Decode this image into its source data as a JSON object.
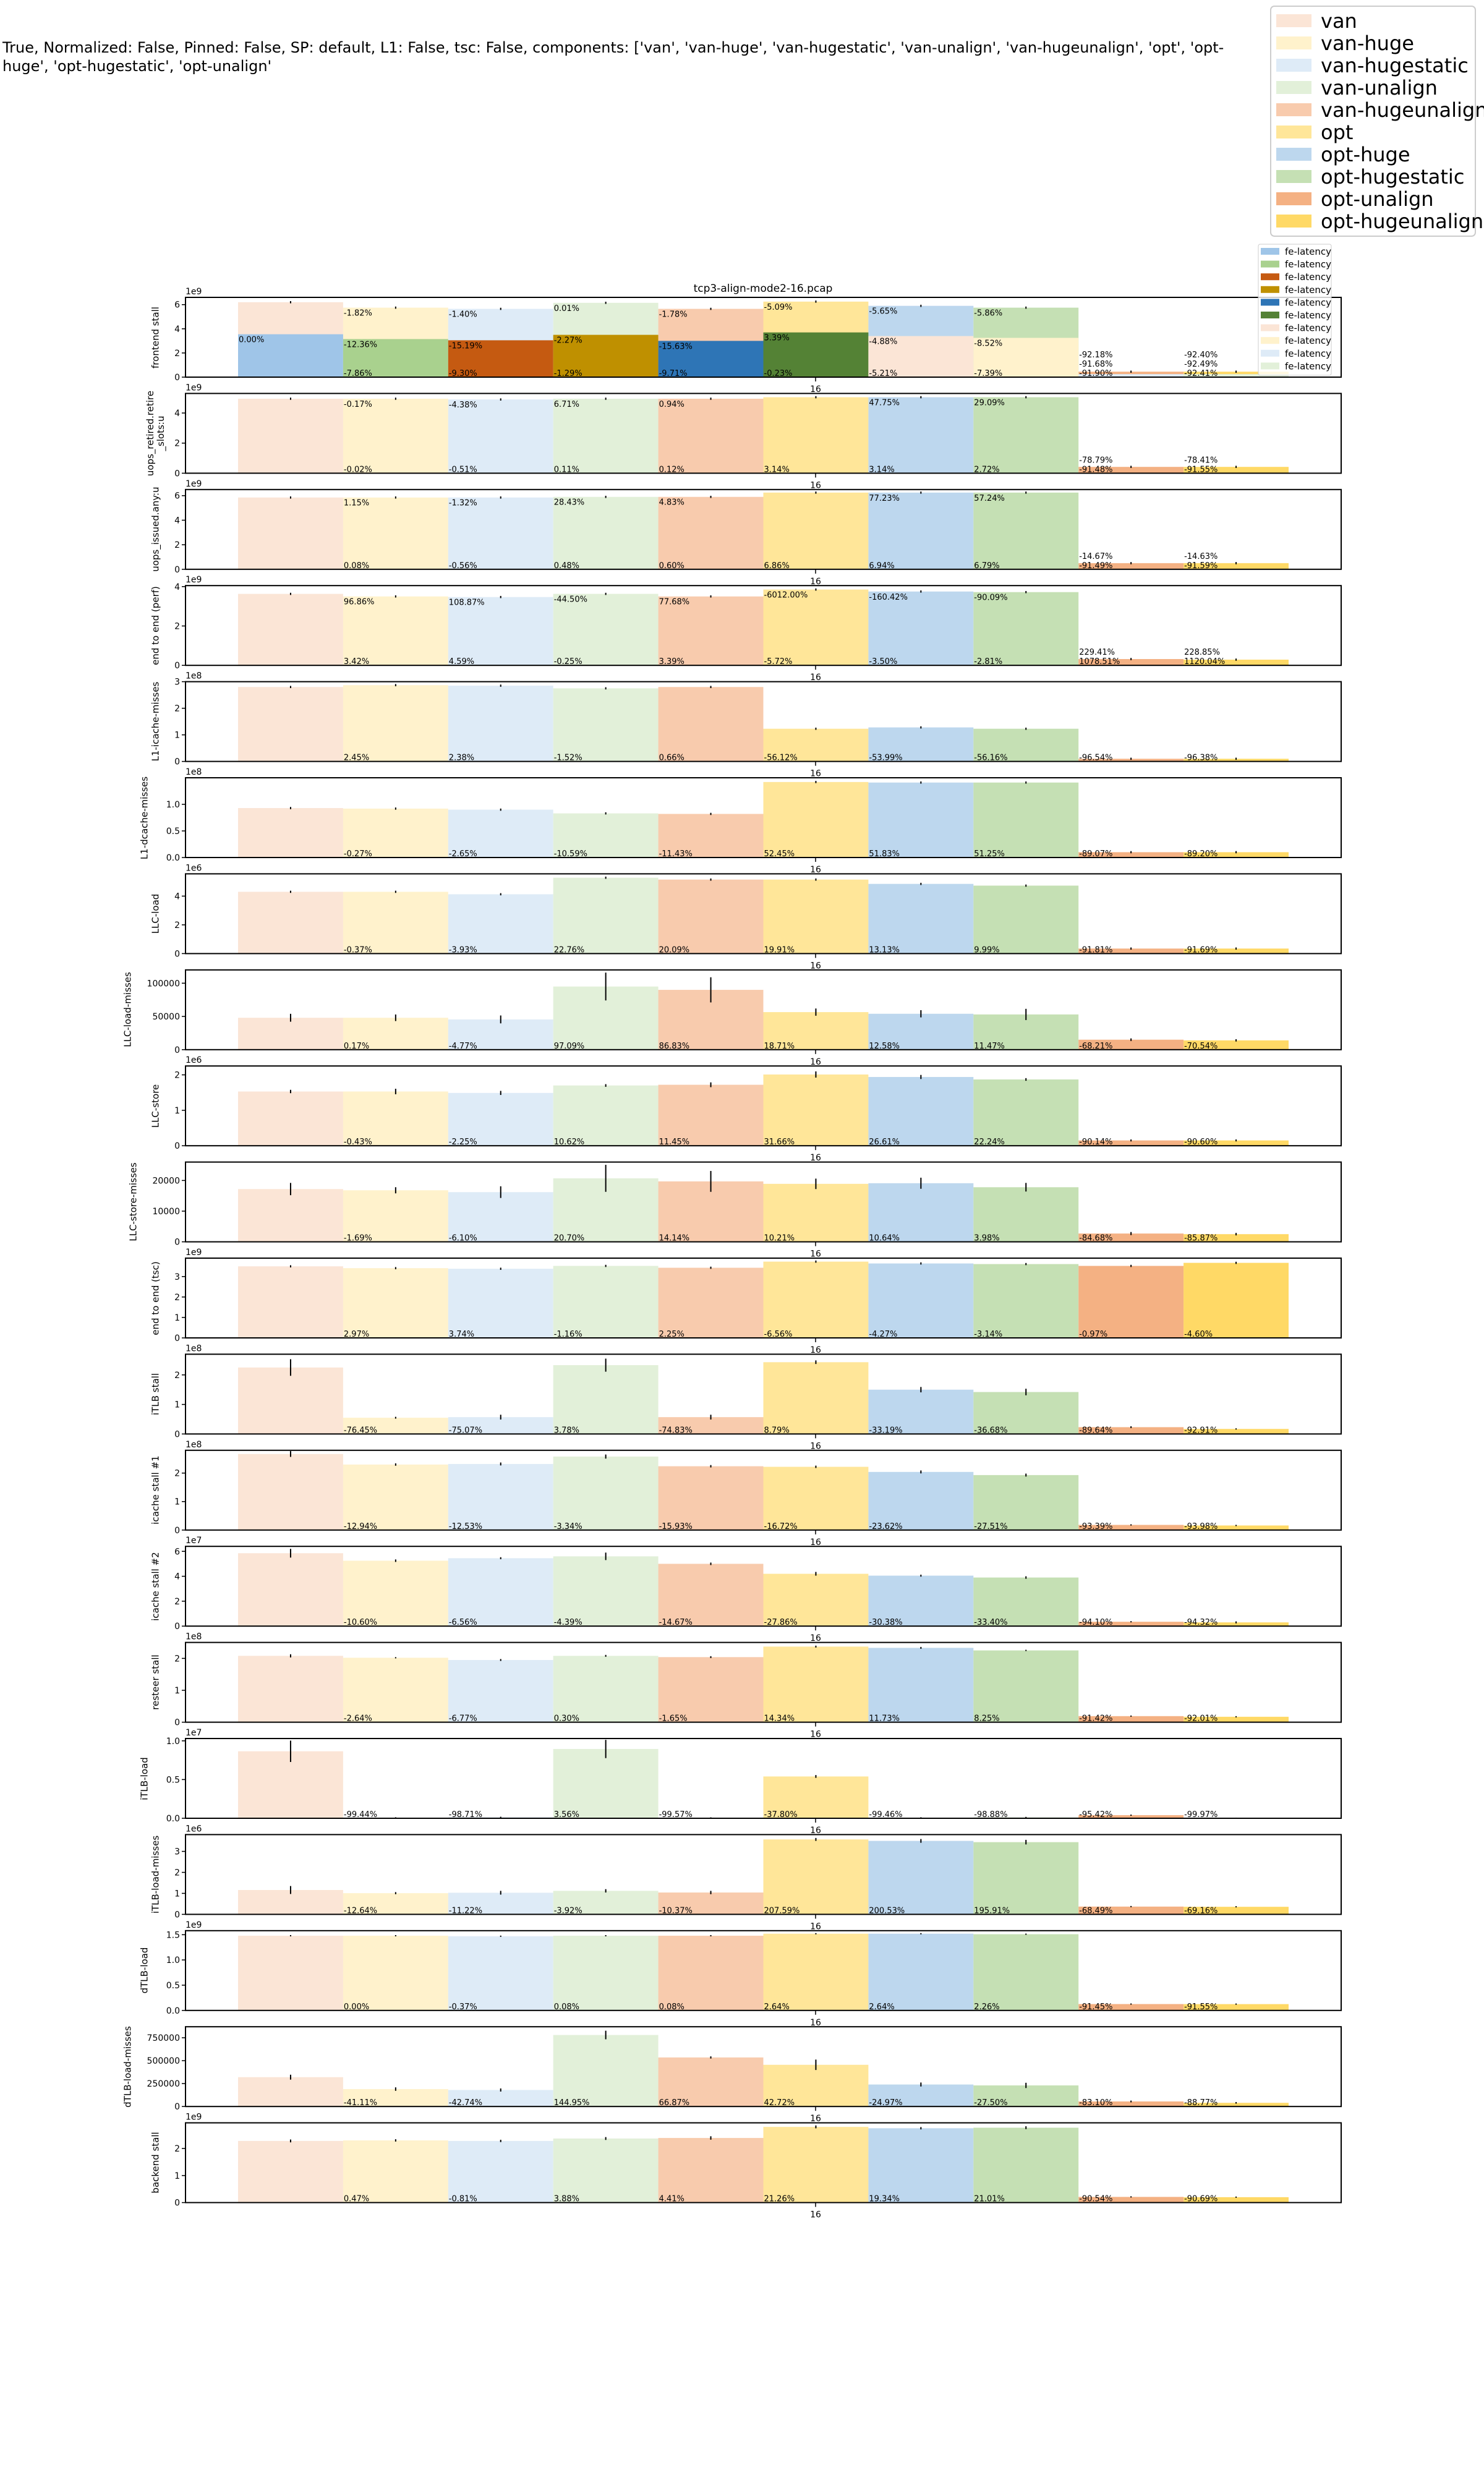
{
  "chart_data": {
    "type": "bar",
    "suptitle": "True, Normalized: False, Pinned: False, SP: default, L1: False, tsc: False, components: ['van', 'van-huge', 'van-hugestatic', 'van-unalign', 'van-hugeunalign', 'opt', 'opt-huge', 'opt-hugestatic', 'opt-unalign'",
    "title": "tcp3-align-mode2-16.pcap",
    "categories": [
      "16"
    ],
    "legend_placement": "top-right",
    "series": [
      {
        "name": "van",
        "color": "#fbe5d6"
      },
      {
        "name": "van-huge",
        "color": "#fff2cc"
      },
      {
        "name": "van-hugestatic",
        "color": "#deebf7"
      },
      {
        "name": "van-unalign",
        "color": "#e2f0d9"
      },
      {
        "name": "van-hugeunalign",
        "color": "#f8cbad"
      },
      {
        "name": "opt",
        "color": "#ffe699"
      },
      {
        "name": "opt-huge",
        "color": "#bdd7ee"
      },
      {
        "name": "opt-hugestatic",
        "color": "#c5e0b4"
      },
      {
        "name": "opt-unalign",
        "color": "#f4b183"
      },
      {
        "name": "opt-hugeunalign",
        "color": "#ffd966"
      }
    ],
    "stack_legend": {
      "placement": "upper-right of first subplot",
      "labels": [
        "fe-latency",
        "fe-latency",
        "fe-latency",
        "fe-latency",
        "fe-latency",
        "fe-latency",
        "fe-latency",
        "fe-latency",
        "fe-latency",
        "fe-latency"
      ],
      "colors": [
        "#9fc5e8",
        "#a9d18e",
        "#c55a11",
        "#bf9000",
        "#2e75b6",
        "#548235",
        "#fbe5d6",
        "#fff2cc",
        "#deebf7",
        "#e2f0d9"
      ]
    },
    "subplots": [
      {
        "ylabel": "frontend stall",
        "exponent": "1e9",
        "ylim": [
          0,
          6.6
        ],
        "ticks": [
          "0",
          "2",
          "4",
          "6"
        ],
        "xtick": "16",
        "values": [
          6.2,
          5.75,
          5.65,
          6.15,
          5.65,
          6.25,
          5.9,
          5.75,
          0.45,
          0.45
        ],
        "stack": {
          "name": "fe-latency",
          "values": [
            3.55,
            3.15,
            3.05,
            3.5,
            3.0,
            3.7,
            3.4,
            3.25,
            0.25,
            0.25
          ]
        },
        "top_labels": [
          "",
          "-1.82%",
          "-1.40%",
          "0.01%",
          "-1.78%",
          "-5.09%",
          "-5.65%",
          "-5.86%",
          "-92.18%",
          "-92.40%"
        ],
        "stack_labels": [
          "0.00%",
          "-12.36%",
          "-15.19%",
          "-2.27%",
          "-15.63%",
          "3.39%",
          "-4.88%",
          "-8.52%",
          "-91.68%",
          "-92.49%"
        ],
        "bottom_labels": [
          "",
          "-7.86%",
          "-9.30%",
          "-1.29%",
          "-9.71%",
          "-0.23%",
          "-5.21%",
          "-7.39%",
          "-91.90%",
          "-92.41%"
        ]
      },
      {
        "ylabel": "uops_retired.retire_slots:u",
        "exponent": "1e9",
        "ylim": [
          0,
          5.3
        ],
        "ticks": [
          "0",
          "2",
          "4"
        ],
        "xtick": "16",
        "values": [
          4.95,
          4.95,
          4.9,
          4.95,
          4.95,
          5.05,
          5.05,
          5.05,
          0.42,
          0.42
        ],
        "top_labels": [
          "",
          "-0.17%",
          "-4.38%",
          "6.71%",
          "0.94%",
          "",
          "47.75%",
          "29.09%",
          "-78.79%",
          "-78.41%"
        ],
        "bottom_labels": [
          "",
          "-0.02%",
          "-0.51%",
          "0.11%",
          "0.12%",
          "3.14%",
          "3.14%",
          "2.72%",
          "-91.48%",
          "-91.55%"
        ]
      },
      {
        "ylabel": "uops_issued.any:u",
        "exponent": "1e9",
        "ylim": [
          0,
          6.5
        ],
        "ticks": [
          "0",
          "2",
          "4",
          "6"
        ],
        "xtick": "16",
        "values": [
          5.85,
          5.85,
          5.85,
          5.9,
          5.9,
          6.25,
          6.25,
          6.25,
          0.5,
          0.5
        ],
        "top_labels": [
          "",
          "1.15%",
          "-1.32%",
          "28.43%",
          "4.83%",
          "",
          "77.23%",
          "57.24%",
          "-14.67%",
          "-14.63%"
        ],
        "bottom_labels": [
          "",
          "0.08%",
          "-0.56%",
          "0.48%",
          "0.60%",
          "6.86%",
          "6.94%",
          "6.79%",
          "-91.49%",
          "-91.59%"
        ]
      },
      {
        "ylabel": "end to end (perf)",
        "exponent": "1e9",
        "ylim": [
          0,
          4.05
        ],
        "ticks": [
          "0",
          "2",
          "4"
        ],
        "xtick": "16",
        "values": [
          3.63,
          3.5,
          3.47,
          3.63,
          3.5,
          3.85,
          3.75,
          3.72,
          0.32,
          0.29
        ],
        "top_labels": [
          "",
          "96.86%",
          "108.87%",
          "-44.50%",
          "77.68%",
          "-6012.00%",
          "-160.42%",
          "-90.09%",
          "229.41%",
          "228.85%"
        ],
        "bottom_labels": [
          "",
          "3.42%",
          "4.59%",
          "-0.25%",
          "3.39%",
          "-5.72%",
          "-3.50%",
          "-2.81%",
          "1078.51%",
          "1120.04%"
        ]
      },
      {
        "ylabel": "L1-icache-misses",
        "exponent": "1e8",
        "ylim": [
          0,
          3.0
        ],
        "ticks": [
          "0",
          "1",
          "2",
          "3"
        ],
        "xtick": "16",
        "values": [
          2.8,
          2.87,
          2.85,
          2.75,
          2.8,
          1.23,
          1.28,
          1.23,
          0.1,
          0.1
        ],
        "bottom_labels": [
          "",
          "2.45%",
          "2.38%",
          "-1.52%",
          "0.66%",
          "-56.12%",
          "-53.99%",
          "-56.16%",
          "-96.54%",
          "-96.38%"
        ]
      },
      {
        "ylabel": "L1-dcache-misses",
        "exponent": "1e8",
        "ylim": [
          0,
          1.5
        ],
        "ticks": [
          "0.0",
          "0.5",
          "1.0"
        ],
        "xtick": "16",
        "values": [
          0.93,
          0.92,
          0.9,
          0.83,
          0.82,
          1.42,
          1.41,
          1.41,
          0.1,
          0.1
        ],
        "bottom_labels": [
          "",
          "-0.27%",
          "-2.65%",
          "-10.59%",
          "-11.43%",
          "52.45%",
          "51.83%",
          "51.25%",
          "-89.07%",
          "-89.20%"
        ]
      },
      {
        "ylabel": "LLC-load",
        "exponent": "1e6",
        "ylim": [
          0,
          5.55
        ],
        "ticks": [
          "0",
          "2",
          "4"
        ],
        "xtick": "16",
        "values": [
          4.3,
          4.3,
          4.13,
          5.28,
          5.15,
          5.15,
          4.85,
          4.73,
          0.35,
          0.35
        ],
        "bottom_labels": [
          "",
          "-0.37%",
          "-3.93%",
          "22.76%",
          "20.09%",
          "19.91%",
          "13.13%",
          "9.99%",
          "-91.81%",
          "-91.69%"
        ]
      },
      {
        "ylabel": "LLC-load-misses",
        "exponent": "",
        "ylim": [
          0,
          120000
        ],
        "ticks": [
          "0",
          "50000",
          "100000"
        ],
        "xtick": "16",
        "values": [
          48000,
          48000,
          45500,
          95000,
          90000,
          56500,
          54000,
          53000,
          15000,
          14000
        ],
        "errors": [
          5000,
          4000,
          5000,
          20000,
          18000,
          4500,
          4500,
          7500,
          1000,
          800
        ],
        "bottom_labels": [
          "",
          "0.17%",
          "-4.77%",
          "97.09%",
          "86.83%",
          "18.71%",
          "12.58%",
          "11.47%",
          "-68.21%",
          "-70.54%"
        ]
      },
      {
        "ylabel": "LLC-store",
        "exponent": "1e6",
        "ylim": [
          0,
          2.25
        ],
        "ticks": [
          "0",
          "1",
          "2"
        ],
        "xtick": "16",
        "values": [
          1.53,
          1.53,
          1.49,
          1.7,
          1.72,
          2.01,
          1.94,
          1.87,
          0.15,
          0.15
        ],
        "errors": [
          0.03,
          0.06,
          0.04,
          0.02,
          0.05,
          0.07,
          0.04,
          0.02,
          0.01,
          0.01
        ],
        "bottom_labels": [
          "",
          "-0.43%",
          "-2.25%",
          "10.62%",
          "11.45%",
          "31.66%",
          "26.61%",
          "22.24%",
          "-90.14%",
          "-90.60%"
        ]
      },
      {
        "ylabel": "LLC-store-misses",
        "exponent": "",
        "ylim": [
          0,
          26000
        ],
        "ticks": [
          "0",
          "10000",
          "20000"
        ],
        "xtick": "16",
        "values": [
          17200,
          16800,
          16200,
          20700,
          19700,
          18900,
          19100,
          17800,
          2700,
          2500
        ],
        "errors": [
          1800,
          800,
          1700,
          4200,
          3200,
          1500,
          1600,
          1200,
          300,
          200
        ],
        "bottom_labels": [
          "",
          "-1.69%",
          "-6.10%",
          "20.70%",
          "14.14%",
          "10.21%",
          "10.64%",
          "3.98%",
          "-84.68%",
          "-85.87%"
        ]
      },
      {
        "ylabel": "end to end (tsc)",
        "exponent": "1e9",
        "ylim": [
          0,
          3.9
        ],
        "ticks": [
          "0",
          "1",
          "2",
          "3"
        ],
        "xtick": "16",
        "values": [
          3.5,
          3.41,
          3.38,
          3.52,
          3.43,
          3.73,
          3.64,
          3.61,
          3.52,
          3.67
        ],
        "bottom_labels": [
          "",
          "2.97%",
          "3.74%",
          "-1.16%",
          "2.25%",
          "-6.56%",
          "-4.27%",
          "-3.14%",
          "-0.97%",
          "-4.60%"
        ]
      },
      {
        "ylabel": "iTLB stall",
        "exponent": "1e8",
        "ylim": [
          0,
          2.7
        ],
        "ticks": [
          "0",
          "1",
          "2"
        ],
        "xtick": "16",
        "values": [
          2.25,
          0.55,
          0.57,
          2.33,
          0.57,
          2.43,
          1.5,
          1.42,
          0.23,
          0.17
        ],
        "errors": [
          0.26,
          0.01,
          0.06,
          0.2,
          0.06,
          0.04,
          0.07,
          0.09,
          0.01,
          0.0
        ],
        "bottom_labels": [
          "",
          "-76.45%",
          "-75.07%",
          "3.78%",
          "-74.83%",
          "8.79%",
          "-33.19%",
          "-36.68%",
          "-89.64%",
          "-92.91%"
        ]
      },
      {
        "ylabel": "icache stall #1",
        "exponent": "1e8",
        "ylim": [
          0,
          2.8
        ],
        "ticks": [
          "0",
          "1",
          "2"
        ],
        "xtick": "16",
        "values": [
          2.67,
          2.3,
          2.32,
          2.58,
          2.24,
          2.22,
          2.04,
          1.93,
          0.18,
          0.16
        ],
        "errors": [
          0.08,
          0.02,
          0.03,
          0.05,
          0.02,
          0.02,
          0.03,
          0.03,
          0.0,
          0.0
        ],
        "bottom_labels": [
          "",
          "-12.94%",
          "-12.53%",
          "-3.34%",
          "-15.93%",
          "-16.72%",
          "-23.62%",
          "-27.51%",
          "-93.39%",
          "-93.98%"
        ]
      },
      {
        "ylabel": "icache stall #2",
        "exponent": "1e7",
        "ylim": [
          0,
          6.4
        ],
        "ticks": [
          "0",
          "2",
          "4",
          "6"
        ],
        "xtick": "16",
        "values": [
          5.85,
          5.25,
          5.45,
          5.6,
          5.0,
          4.2,
          4.05,
          3.9,
          0.35,
          0.3
        ],
        "errors": [
          0.3,
          0.05,
          0.03,
          0.25,
          0.05,
          0.1,
          0.03,
          0.05,
          0.0,
          0.03
        ],
        "bottom_labels": [
          "",
          "-10.60%",
          "-6.56%",
          "-4.39%",
          "-14.67%",
          "-27.86%",
          "-30.38%",
          "-33.40%",
          "-94.10%",
          "-94.32%"
        ]
      },
      {
        "ylabel": "resteer stall",
        "exponent": "1e8",
        "ylim": [
          0,
          2.5
        ],
        "ticks": [
          "0",
          "1",
          "2"
        ],
        "xtick": "16",
        "values": [
          2.08,
          2.02,
          1.95,
          2.08,
          2.04,
          2.37,
          2.33,
          2.25,
          0.19,
          0.17
        ],
        "errors": [
          0.03,
          0.0,
          0.01,
          0.01,
          0.01,
          0.01,
          0.01,
          0.0,
          0.0,
          0.0
        ],
        "bottom_labels": [
          "",
          "-2.64%",
          "-6.77%",
          "0.30%",
          "-1.65%",
          "14.34%",
          "11.73%",
          "8.25%",
          "-91.42%",
          "-92.01%"
        ]
      },
      {
        "ylabel": "iTLB-load",
        "exponent": "1e7",
        "ylim": [
          0,
          1.03
        ],
        "ticks": [
          "0.0",
          "0.5",
          "1.0"
        ],
        "xtick": "16",
        "values": [
          0.865,
          0.005,
          0.012,
          0.895,
          0.004,
          0.54,
          0.005,
          0.01,
          0.04,
          0.0003
        ],
        "errors": [
          0.13,
          0.0,
          0.0,
          0.11,
          0.0,
          0.01,
          0.0,
          0.0,
          0.0,
          0.0
        ],
        "bottom_labels": [
          "",
          "-99.44%",
          "-98.71%",
          "3.56%",
          "-99.57%",
          "-37.80%",
          "-99.46%",
          "-98.88%",
          "-95.42%",
          "-99.97%"
        ]
      },
      {
        "ylabel": "iTLB-load-misses",
        "exponent": "1e6",
        "ylim": [
          0,
          3.8
        ],
        "ticks": [
          "0",
          "1",
          "2",
          "3"
        ],
        "xtick": "16",
        "values": [
          1.16,
          1.01,
          1.03,
          1.12,
          1.04,
          3.57,
          3.5,
          3.44,
          0.37,
          0.36
        ],
        "errors": [
          0.16,
          0.02,
          0.06,
          0.05,
          0.05,
          0.04,
          0.06,
          0.08,
          0.0,
          0.0
        ],
        "bottom_labels": [
          "",
          "-12.64%",
          "-11.22%",
          "-3.92%",
          "-10.37%",
          "207.59%",
          "200.53%",
          "195.91%",
          "-68.49%",
          "-69.16%"
        ]
      },
      {
        "ylabel": "dTLB-load",
        "exponent": "1e9",
        "ylim": [
          0,
          1.58
        ],
        "ticks": [
          "0.0",
          "0.5",
          "1.0",
          "1.5"
        ],
        "xtick": "16",
        "values": [
          1.48,
          1.48,
          1.47,
          1.48,
          1.48,
          1.52,
          1.52,
          1.51,
          0.126,
          0.125
        ],
        "errors": [
          0,
          0,
          0,
          0,
          0,
          0,
          0,
          0,
          0,
          0
        ],
        "bottom_labels": [
          "",
          "0.00%",
          "-0.37%",
          "0.08%",
          "0.08%",
          "2.64%",
          "2.64%",
          "2.26%",
          "-91.45%",
          "-91.55%"
        ]
      },
      {
        "ylabel": "dTLB-load-misses",
        "exponent": "",
        "ylim": [
          0,
          870000
        ],
        "ticks": [
          "0",
          "250000",
          "500000",
          "750000"
        ],
        "xtick": "16",
        "values": [
          320000,
          190000,
          180000,
          780000,
          535000,
          455000,
          240000,
          230000,
          55000,
          40000
        ],
        "errors": [
          20000,
          12000,
          10000,
          40000,
          5000,
          50000,
          15000,
          22000,
          3000,
          2000
        ],
        "bottom_labels": [
          "",
          "-41.11%",
          "-42.74%",
          "144.95%",
          "66.87%",
          "42.72%",
          "-24.97%",
          "-27.50%",
          "-83.10%",
          "-88.77%"
        ]
      },
      {
        "ylabel": "backend stall",
        "exponent": "1e9",
        "ylim": [
          0,
          2.95
        ],
        "ticks": [
          "0",
          "1",
          "2"
        ],
        "xtick": "16",
        "values": [
          2.28,
          2.3,
          2.28,
          2.37,
          2.39,
          2.8,
          2.75,
          2.77,
          0.21,
          0.2
        ],
        "errors": [
          0.03,
          0.02,
          0.02,
          0.03,
          0.04,
          0.03,
          0.02,
          0.03,
          0.0,
          0.0
        ],
        "bottom_labels": [
          "",
          "0.47%",
          "-0.81%",
          "3.88%",
          "4.41%",
          "21.26%",
          "19.34%",
          "21.01%",
          "-90.54%",
          "-90.69%"
        ]
      }
    ]
  }
}
